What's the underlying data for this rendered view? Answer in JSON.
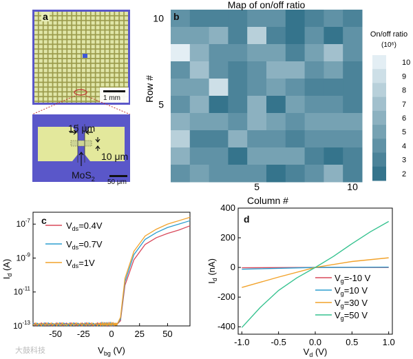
{
  "panels": {
    "a": {
      "letter": "a",
      "scale_top": "1 mm",
      "dim_width": "15 μm",
      "dim_height": "10 μm",
      "material": "MoS",
      "material_sub": "2",
      "scale_bottom": "50 μm"
    },
    "b": {
      "letter": "b"
    },
    "c": {
      "letter": "c"
    },
    "d": {
      "letter": "d"
    }
  },
  "watermark": "大鼓科技",
  "colors": {
    "mos2_bg": "#5b58c8",
    "device_pad": "#e5ea9a",
    "heat_low": "#2a6c86",
    "heat_high": "#eef6fa",
    "line_red": "#d9485a",
    "line_blue": "#2b9dcf",
    "line_orange": "#f2a22a",
    "line_green": "#35c28f"
  },
  "chart_data": [
    {
      "type": "heatmap",
      "title": "Map of on/off ratio",
      "xlabel": "Column #",
      "ylabel": "Row #",
      "x_ticks": [
        5,
        10
      ],
      "y_ticks": [
        5,
        10
      ],
      "colorbar": {
        "label": "On/off ratio",
        "unit": "(10⁶)",
        "ticks": [
          2,
          3,
          4,
          5,
          6,
          7,
          8,
          9,
          10
        ],
        "range": [
          1.5,
          10.5
        ]
      },
      "rows_top_to_bottom": [
        [
          4,
          3,
          3,
          3,
          4,
          4,
          2,
          3,
          4,
          3
        ],
        [
          5,
          5,
          6,
          3,
          8,
          3,
          2,
          4,
          2,
          4
        ],
        [
          10,
          6,
          4,
          4,
          5,
          5,
          3,
          5,
          7,
          4
        ],
        [
          4,
          7,
          4,
          3,
          4,
          6,
          6,
          4,
          5,
          3
        ],
        [
          5,
          5,
          9,
          3,
          4,
          5,
          4,
          3,
          3,
          3
        ],
        [
          4,
          6,
          2,
          3,
          6,
          2,
          5,
          4,
          4,
          3
        ],
        [
          6,
          5,
          5,
          4,
          6,
          5,
          4,
          5,
          5,
          5
        ],
        [
          8,
          3,
          3,
          6,
          4,
          4,
          3,
          4,
          4,
          4
        ],
        [
          6,
          4,
          4,
          2,
          5,
          5,
          5,
          3,
          2,
          3
        ],
        [
          4,
          5,
          4,
          4,
          4,
          2,
          3,
          4,
          6,
          3
        ]
      ]
    },
    {
      "type": "line",
      "xlabel": "V",
      "xlabel_sub": "bg",
      "xlabel_unit": " (V)",
      "ylabel": "I",
      "ylabel_sub": "d",
      "ylabel_unit": " (A)",
      "xlim": [
        -70,
        70
      ],
      "ylim_log10": [
        -13,
        -6.3
      ],
      "x_ticks": [
        -50,
        -25,
        0,
        25,
        50
      ],
      "y_ticks_log10": [
        -13,
        -11,
        -9,
        -7
      ],
      "series": [
        {
          "name": "0.4V",
          "prefix": "V",
          "sub": "ds",
          "color": "#d9485a",
          "x": [
            -70,
            -40,
            -10,
            2,
            5,
            8,
            12,
            20,
            30,
            40,
            50,
            60,
            70
          ],
          "y_log10": [
            -12.9,
            -12.9,
            -12.9,
            -12.9,
            -12.9,
            -12.7,
            -10.6,
            -9.1,
            -8.2,
            -7.8,
            -7.55,
            -7.35,
            -7.1
          ]
        },
        {
          "name": "0.7V",
          "prefix": "V",
          "sub": "ds",
          "color": "#2b9dcf",
          "x": [
            -70,
            -40,
            -10,
            2,
            5,
            8,
            12,
            20,
            30,
            40,
            50,
            60,
            70
          ],
          "y_log10": [
            -12.9,
            -12.9,
            -12.9,
            -12.9,
            -12.9,
            -12.6,
            -10.4,
            -8.8,
            -7.9,
            -7.5,
            -7.2,
            -7.0,
            -6.8
          ]
        },
        {
          "name": "1V",
          "prefix": "V",
          "sub": "ds",
          "color": "#f2a22a",
          "x": [
            -70,
            -40,
            -10,
            2,
            5,
            8,
            12,
            20,
            30,
            40,
            50,
            60,
            70
          ],
          "y_log10": [
            -12.9,
            -12.9,
            -12.9,
            -12.9,
            -12.9,
            -12.5,
            -10.2,
            -8.6,
            -7.7,
            -7.3,
            -7.0,
            -6.8,
            -6.6
          ]
        }
      ]
    },
    {
      "type": "line",
      "xlabel": "V",
      "xlabel_sub": "d",
      "xlabel_unit": " (V)",
      "ylabel": "I",
      "ylabel_sub": "d",
      "ylabel_unit": " (nA)",
      "xlim": [
        -1.05,
        1.05
      ],
      "ylim": [
        -450,
        400
      ],
      "x_ticks": [
        -1.0,
        -0.5,
        0.0,
        0.5,
        1.0
      ],
      "y_ticks": [
        -400,
        -200,
        0,
        200,
        400
      ],
      "series": [
        {
          "name": "=-10 V",
          "prefix": "V",
          "sub": "g",
          "color": "#d9485a",
          "x": [
            -1.0,
            0.0,
            1.0
          ],
          "y": [
            -2,
            0,
            0
          ]
        },
        {
          "name": "=10 V",
          "prefix": "V",
          "sub": "g",
          "color": "#2b9dcf",
          "x": [
            -1.0,
            0.0,
            1.0
          ],
          "y": [
            -12,
            0,
            2
          ]
        },
        {
          "name": "=30 V",
          "prefix": "V",
          "sub": "g",
          "color": "#f2a22a",
          "x": [
            -1.0,
            -0.5,
            0.0,
            0.5,
            1.0
          ],
          "y": [
            -135,
            -65,
            0,
            40,
            65
          ]
        },
        {
          "name": "=50 V",
          "prefix": "V",
          "sub": "g",
          "color": "#35c28f",
          "x": [
            -1.0,
            -0.75,
            -0.5,
            -0.25,
            0.0,
            0.25,
            0.5,
            0.75,
            1.0
          ],
          "y": [
            -405,
            -270,
            -155,
            -70,
            0,
            75,
            160,
            240,
            310
          ]
        }
      ]
    }
  ]
}
